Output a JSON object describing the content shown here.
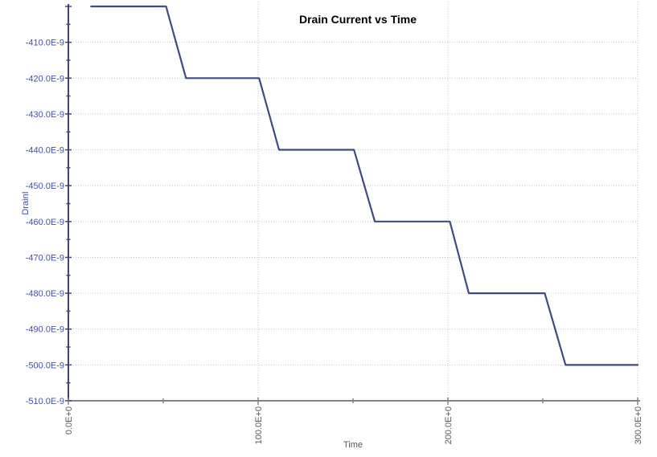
{
  "chart_data": {
    "type": "line",
    "title": "Drain Current vs Time",
    "xlabel": "Time",
    "ylabel": "DrainI",
    "series": [
      {
        "name": "DrainI",
        "color": "#3d4c82",
        "points": [
          [
            12,
            -400
          ],
          [
            51.5,
            -400
          ],
          [
            62,
            -420
          ],
          [
            100.5,
            -420
          ],
          [
            111,
            -440
          ],
          [
            150.5,
            -440
          ],
          [
            161.5,
            -460
          ],
          [
            201,
            -460
          ],
          [
            211,
            -480
          ],
          [
            251,
            -480
          ],
          [
            262,
            -500
          ],
          [
            300,
            -500
          ]
        ]
      }
    ],
    "axes": {
      "x": {
        "min": 0,
        "max": 300,
        "major_ticks": [
          {
            "value": 0,
            "label": "0.0E+0"
          },
          {
            "value": 100,
            "label": "100.0E+0"
          },
          {
            "value": 200,
            "label": "200.0E+0"
          },
          {
            "value": 300,
            "label": "300.0E+0"
          }
        ],
        "minor_ticks": [
          50,
          150,
          250
        ],
        "gridline_values": [
          100,
          200,
          300
        ]
      },
      "y": {
        "min": -510,
        "max": -400,
        "major_ticks": [
          {
            "value": -400,
            "label": ""
          },
          {
            "value": -410,
            "label": "-410.0E-9"
          },
          {
            "value": -420,
            "label": "-420.0E-9"
          },
          {
            "value": -430,
            "label": "-430.0E-9"
          },
          {
            "value": -440,
            "label": "-440.0E-9"
          },
          {
            "value": -450,
            "label": "-450.0E-9"
          },
          {
            "value": -460,
            "label": "-460.0E-9"
          },
          {
            "value": -470,
            "label": "-470.0E-9"
          },
          {
            "value": -480,
            "label": "-480.0E-9"
          },
          {
            "value": -490,
            "label": "-490.0E-9"
          },
          {
            "value": -500,
            "label": "-500.0E-9"
          },
          {
            "value": -510,
            "label": "-510.0E-9"
          }
        ],
        "minor_ticks": [
          -405,
          -415,
          -425,
          -435,
          -445,
          -455,
          -465,
          -475,
          -485,
          -495,
          -505
        ],
        "gridline_values": [
          -410,
          -420,
          -430,
          -440,
          -450,
          -460,
          -470,
          -480,
          -490,
          -500
        ]
      }
    },
    "style": {
      "line_color": "#3d4c82",
      "grid_color": "#c6c6c6",
      "y_axis_color": "#3f4677",
      "x_axis_color": "#858585",
      "y_text_color": "#4350a0",
      "x_text_color": "#595959",
      "title_color": "#000000"
    },
    "legend": null,
    "grid": true
  }
}
